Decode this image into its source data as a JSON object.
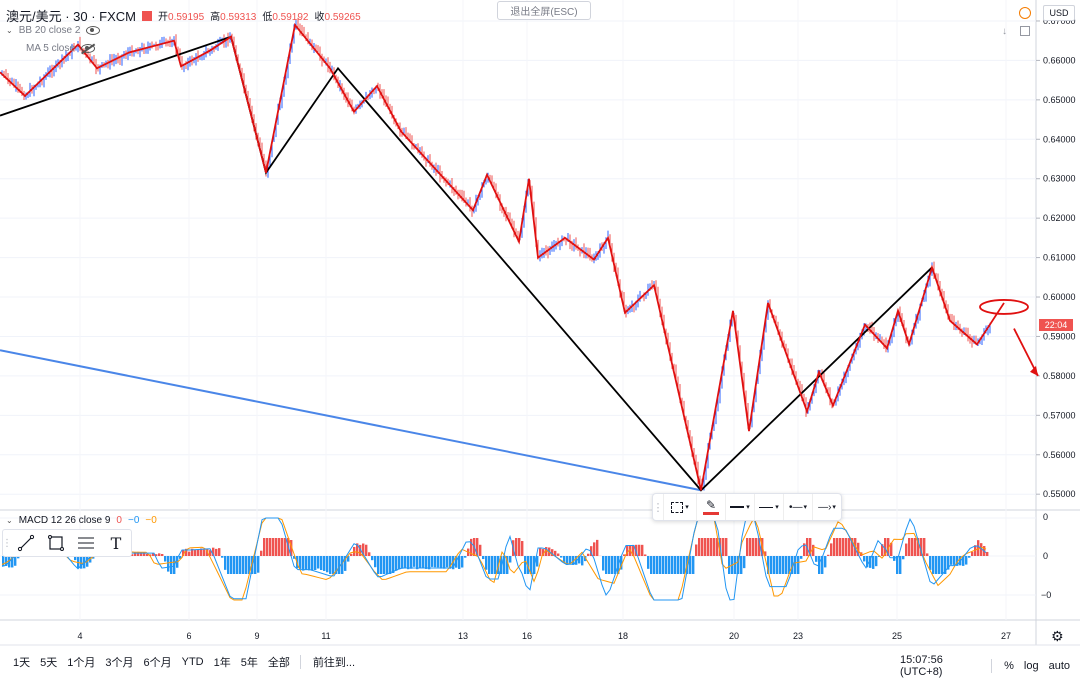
{
  "header": {
    "symbol": "澳元/美元 · 30 · FXCM",
    "open_label": "开",
    "open_value": "0.59195",
    "high_label": "高",
    "high_value": "0.59313",
    "low_label": "低",
    "low_value": "0.59192",
    "close_label": "收",
    "close_value": "0.59265",
    "exit_fullscreen": "退出全屏(ESC)",
    "currency": "USD",
    "alert_icon": "clock-alert-icon"
  },
  "indicators": {
    "bb": "BB 20 close 2",
    "ma": "MA 5 close",
    "macd_label": "MACD 12 26 close 9",
    "macd_v1": "0",
    "macd_v2": "−0",
    "macd_v3": "−0"
  },
  "macd_axis": [
    "0",
    "0",
    "−0"
  ],
  "floating_toolbar": {
    "icons": [
      "drag-handle-icon",
      "select-box-icon",
      "pencil-icon",
      "line-style-icon",
      "line-dash-icon",
      "line-end-icon",
      "arrow-end-icon"
    ],
    "accent": "#e53935"
  },
  "drawing_tools": [
    "line-tool-icon",
    "rectangle-tool-icon",
    "fib-tool-icon",
    "text-tool-icon"
  ],
  "bottom_bar": {
    "ranges": [
      "1天",
      "5天",
      "1个月",
      "3个月",
      "6个月",
      "YTD",
      "1年",
      "5年",
      "全部"
    ],
    "goto": "前往到...",
    "time": "15:07:56 (UTC+8)",
    "pct": "%",
    "log": "log",
    "auto": "auto"
  },
  "chart_data": {
    "type": "line",
    "title": "澳元/美元 · 30 · FXCM",
    "price_axis": {
      "ticks": [
        "0.67000",
        "0.66000",
        "0.65000",
        "0.64000",
        "0.63000",
        "0.62000",
        "0.61000",
        "0.60000",
        "0.59000",
        "0.58000",
        "0.57000",
        "0.56000",
        "0.55000"
      ],
      "ylim": [
        0.5465,
        0.6705
      ]
    },
    "x_ticks": [
      "4",
      "6",
      "9",
      "11",
      "13",
      "16",
      "18",
      "20",
      "23",
      "25",
      "27"
    ],
    "current_price_tag": "22:04",
    "current_price": 0.5926,
    "colors": {
      "candle_up": "#2962ff",
      "candle_down": "#ef5350",
      "red_zigzag": "#e01010",
      "black_zigzag": "#000000",
      "blue_line": "#4a86e8",
      "macd_pos": "#ef5350",
      "macd_neg": "#2196f3"
    },
    "red_zigzag": [
      [
        0,
        0.657
      ],
      [
        1,
        0.651
      ],
      [
        2,
        0.664
      ],
      [
        3,
        0.658
      ],
      [
        4,
        0.662
      ],
      [
        5,
        0.665
      ],
      [
        6,
        0.6585
      ],
      [
        7,
        0.6625
      ],
      [
        8,
        0.666
      ],
      [
        9,
        0.6315
      ],
      [
        10,
        0.669
      ],
      [
        11,
        0.658
      ],
      [
        12,
        0.647
      ],
      [
        13,
        0.6535
      ],
      [
        14,
        0.642
      ],
      [
        15,
        0.622
      ],
      [
        16,
        0.631
      ],
      [
        17,
        0.614
      ],
      [
        18,
        0.63
      ],
      [
        19,
        0.61
      ],
      [
        20,
        0.615
      ],
      [
        21,
        0.6095
      ],
      [
        22,
        0.615
      ],
      [
        23,
        0.596
      ],
      [
        24,
        0.603
      ],
      [
        25,
        0.551
      ],
      [
        26,
        0.5965
      ],
      [
        27,
        0.566
      ],
      [
        28,
        0.5985
      ],
      [
        29,
        0.571
      ],
      [
        30,
        0.581
      ],
      [
        31,
        0.5725
      ],
      [
        32,
        0.593
      ],
      [
        33,
        0.587
      ],
      [
        34,
        0.5965
      ],
      [
        35,
        0.588
      ],
      [
        36,
        0.6075
      ],
      [
        37,
        0.594
      ],
      [
        38,
        0.588
      ],
      [
        39,
        0.5985
      ]
    ],
    "black_zigzag": [
      [
        0,
        0.646
      ],
      [
        1,
        0.666
      ],
      [
        2,
        0.6315
      ],
      [
        3,
        0.658
      ],
      [
        4,
        0.551
      ],
      [
        5,
        0.6075
      ]
    ],
    "blue_trendline": [
      [
        0,
        0.5865
      ],
      [
        1,
        0.551
      ]
    ],
    "projection_arrow": [
      [
        0,
        0.592
      ],
      [
        1,
        0.58
      ]
    ],
    "projection_ellipse_price": 0.5985
  }
}
